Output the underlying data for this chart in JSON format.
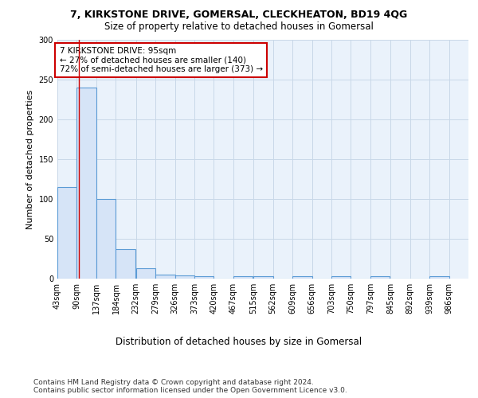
{
  "title1": "7, KIRKSTONE DRIVE, GOMERSAL, CLECKHEATON, BD19 4QG",
  "title2": "Size of property relative to detached houses in Gomersal",
  "xlabel": "Distribution of detached houses by size in Gomersal",
  "ylabel": "Number of detached properties",
  "bin_labels": [
    "43sqm",
    "90sqm",
    "137sqm",
    "184sqm",
    "232sqm",
    "279sqm",
    "326sqm",
    "373sqm",
    "420sqm",
    "467sqm",
    "515sqm",
    "562sqm",
    "609sqm",
    "656sqm",
    "703sqm",
    "750sqm",
    "797sqm",
    "845sqm",
    "892sqm",
    "939sqm",
    "986sqm"
  ],
  "bin_edges": [
    43,
    90,
    137,
    184,
    232,
    279,
    326,
    373,
    420,
    467,
    515,
    562,
    609,
    656,
    703,
    750,
    797,
    845,
    892,
    939,
    986
  ],
  "bar_heights": [
    115,
    240,
    100,
    37,
    13,
    5,
    4,
    3,
    0,
    3,
    3,
    0,
    3,
    0,
    3,
    0,
    3,
    0,
    0,
    3
  ],
  "bar_color": "#d6e4f7",
  "bar_edge_color": "#5b9bd5",
  "property_line_x": 95,
  "property_line_color": "#cc0000",
  "annotation_text": "7 KIRKSTONE DRIVE: 95sqm\n← 27% of detached houses are smaller (140)\n72% of semi-detached houses are larger (373) →",
  "annotation_box_color": "#ffffff",
  "annotation_box_edge": "#cc0000",
  "ylim": [
    0,
    300
  ],
  "yticks": [
    0,
    50,
    100,
    150,
    200,
    250,
    300
  ],
  "grid_color": "#c8d8e8",
  "background_color": "#eaf2fb",
  "footer_text": "Contains HM Land Registry data © Crown copyright and database right 2024.\nContains public sector information licensed under the Open Government Licence v3.0.",
  "title1_fontsize": 9,
  "title2_fontsize": 8.5,
  "xlabel_fontsize": 8.5,
  "ylabel_fontsize": 8,
  "tick_fontsize": 7,
  "annotation_fontsize": 7.5,
  "footer_fontsize": 6.5
}
